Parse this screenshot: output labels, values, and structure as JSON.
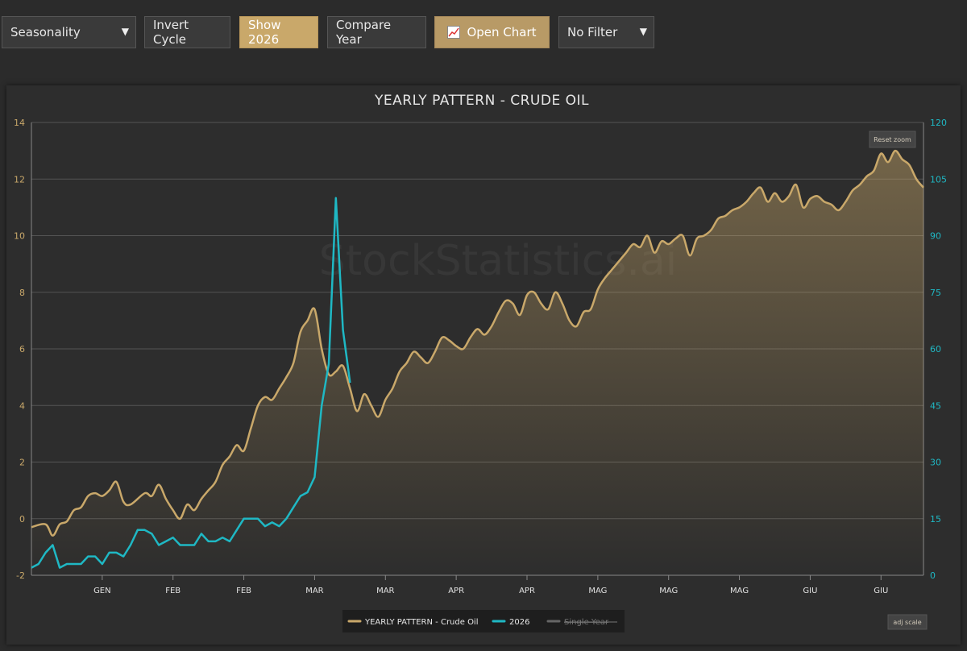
{
  "toolbar": {
    "mode_select": "Seasonality",
    "invert_cycle": "Invert Cycle",
    "show_year": "Show 2026",
    "compare_year": "Compare Year",
    "open_chart": "Open Chart",
    "filter_select": "No Filter"
  },
  "watermark": "StockStatistics.ai",
  "reset_zoom": "Reset zoom",
  "adj_scale": "adj scale",
  "colors": {
    "gold": "#c9a86a",
    "cyan": "#1fb8c4",
    "grey": "#777777"
  },
  "chart_data": {
    "type": "line",
    "title": "YEARLY PATTERN - CRUDE OIL",
    "left_axis": {
      "ylim": [
        -2,
        14
      ],
      "ticks": [
        -2,
        0,
        2,
        4,
        6,
        8,
        10,
        12,
        14
      ]
    },
    "right_axis": {
      "ylim": [
        0,
        120
      ],
      "ticks": [
        0,
        15,
        30,
        45,
        60,
        75,
        90,
        105,
        120
      ]
    },
    "x_range": [
      0,
      126
    ],
    "x_tick_labels": [
      {
        "x": 10,
        "label": "GEN"
      },
      {
        "x": 20,
        "label": "FEB"
      },
      {
        "x": 30,
        "label": "FEB"
      },
      {
        "x": 40,
        "label": "MAR"
      },
      {
        "x": 50,
        "label": "MAR"
      },
      {
        "x": 60,
        "label": "APR"
      },
      {
        "x": 70,
        "label": "APR"
      },
      {
        "x": 80,
        "label": "MAG"
      },
      {
        "x": 90,
        "label": "MAG"
      },
      {
        "x": 100,
        "label": "MAG"
      },
      {
        "x": 110,
        "label": "GIU"
      },
      {
        "x": 120,
        "label": "GIU"
      }
    ],
    "legend": [
      {
        "name": "YEARLY PATTERN - Crude Oil",
        "color": "#c9a86a",
        "visible": true
      },
      {
        "name": "2026",
        "color": "#1fb8c4",
        "visible": true
      },
      {
        "name": "Single Year",
        "color": "#777777",
        "visible": false
      }
    ],
    "series": [
      {
        "name": "YEARLY PATTERN - Crude Oil",
        "axis": "left",
        "x": [
          0,
          2,
          3,
          4,
          5,
          6,
          7,
          8,
          9,
          10,
          11,
          12,
          13,
          14,
          16,
          17,
          18,
          19,
          20,
          21,
          22,
          23,
          24,
          25,
          26,
          27,
          28,
          29,
          30,
          31,
          32,
          33,
          34,
          35,
          36,
          37,
          38,
          39,
          40,
          41,
          42,
          43,
          44,
          45,
          46,
          47,
          48,
          49,
          50,
          51,
          52,
          53,
          54,
          55,
          56,
          57,
          58,
          59,
          60,
          61,
          62,
          63,
          64,
          65,
          66,
          67,
          68,
          69,
          70,
          71,
          72,
          73,
          74,
          75,
          76,
          77,
          78,
          79,
          80,
          81,
          82,
          83,
          84,
          85,
          86,
          87,
          88,
          89,
          90,
          91,
          92,
          93,
          94,
          95,
          96,
          97,
          98,
          99,
          100,
          101,
          102,
          103,
          104,
          105,
          106,
          107,
          108,
          109,
          110,
          111,
          112,
          113,
          114,
          115,
          116,
          117,
          118,
          119,
          120,
          121,
          122,
          123,
          124,
          125,
          126
        ],
        "y": [
          -0.3,
          -0.2,
          -0.6,
          -0.2,
          -0.1,
          0.3,
          0.4,
          0.8,
          0.9,
          0.8,
          1.0,
          1.3,
          0.6,
          0.5,
          0.9,
          0.8,
          1.2,
          0.7,
          0.3,
          0.0,
          0.5,
          0.3,
          0.7,
          1.0,
          1.3,
          1.9,
          2.2,
          2.6,
          2.4,
          3.2,
          4.0,
          4.3,
          4.2,
          4.6,
          5.0,
          5.5,
          6.6,
          7.0,
          7.4,
          6.0,
          5.1,
          5.2,
          5.4,
          4.6,
          3.8,
          4.4,
          4.0,
          3.6,
          4.2,
          4.6,
          5.2,
          5.5,
          5.9,
          5.7,
          5.5,
          5.9,
          6.4,
          6.3,
          6.1,
          6.0,
          6.4,
          6.7,
          6.5,
          6.8,
          7.3,
          7.7,
          7.6,
          7.2,
          7.9,
          8.0,
          7.6,
          7.4,
          8.0,
          7.6,
          7.0,
          6.8,
          7.3,
          7.4,
          8.1,
          8.5,
          8.8,
          9.1,
          9.4,
          9.7,
          9.6,
          10.0,
          9.4,
          9.8,
          9.7,
          9.9,
          10.0,
          9.3,
          9.9,
          10.0,
          10.2,
          10.6,
          10.7,
          10.9,
          11.0,
          11.2,
          11.5,
          11.7,
          11.2,
          11.5,
          11.2,
          11.4,
          11.8,
          11.0,
          11.3,
          11.4,
          11.2,
          11.1,
          10.9,
          11.2,
          11.6,
          11.8,
          12.1,
          12.3,
          12.9,
          12.6,
          13.0,
          12.7,
          12.5,
          12.0,
          11.7
        ]
      },
      {
        "name": "2026",
        "axis": "right",
        "x": [
          0,
          1,
          2,
          3,
          4,
          5,
          6,
          7,
          8,
          9,
          10,
          11,
          12,
          13,
          14,
          15,
          16,
          17,
          18,
          19,
          20,
          21,
          22,
          23,
          24,
          25,
          26,
          27,
          28,
          29,
          30,
          31,
          32,
          33,
          34,
          35,
          36,
          37,
          38,
          39,
          40,
          41,
          42,
          43,
          44,
          45
        ],
        "y": [
          2,
          3,
          6,
          8,
          2,
          3,
          3,
          3,
          5,
          5,
          3,
          6,
          6,
          5,
          8,
          12,
          12,
          11,
          8,
          9,
          10,
          8,
          8,
          8,
          11,
          9,
          9,
          10,
          9,
          12,
          15,
          15,
          15,
          13,
          14,
          13,
          15,
          18,
          21,
          22,
          26,
          45,
          56,
          100,
          65,
          51
        ]
      }
    ]
  }
}
